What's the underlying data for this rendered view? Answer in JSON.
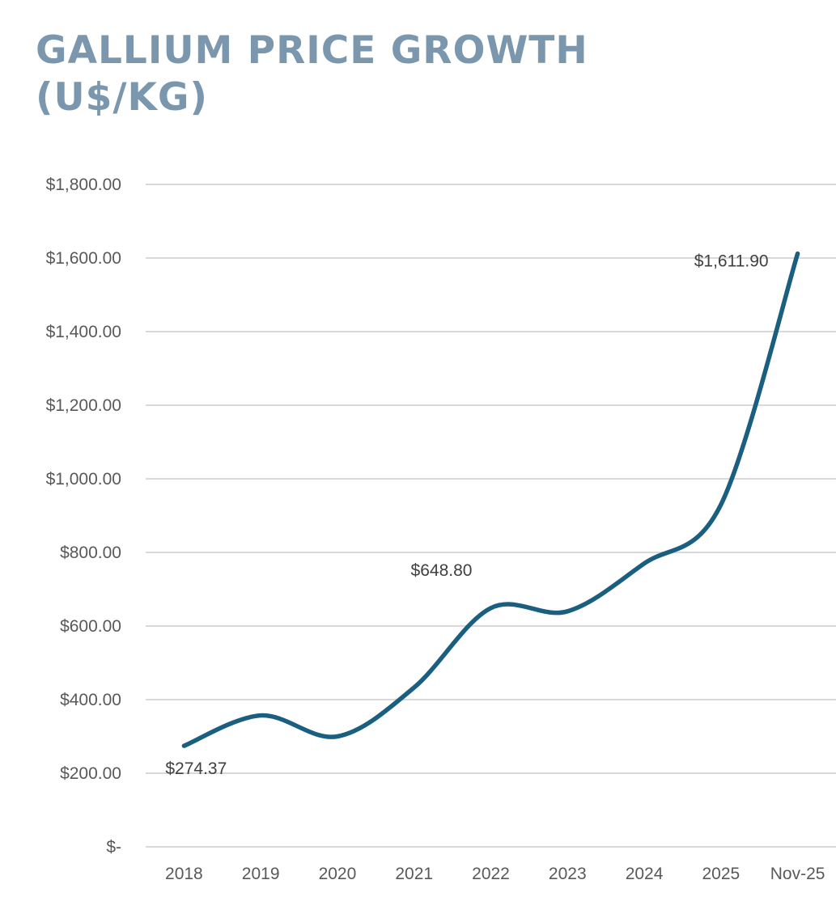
{
  "chart_data": {
    "type": "line",
    "title": "GALLIUM PRICE GROWTH (U$/KG)",
    "title_lines": [
      "GALLIUM PRICE GROWTH",
      "(U$/KG)"
    ],
    "xlabel": "",
    "ylabel": "",
    "categories": [
      "2018",
      "2019",
      "2020",
      "2021",
      "2022",
      "2023",
      "2024",
      "2025",
      "Nov-25"
    ],
    "series": [
      {
        "name": "Gallium price (US$/kg)",
        "color": "#1b5f80",
        "smooth": true,
        "values": [
          274.37,
          357,
          300,
          433,
          648.8,
          640,
          770,
          930,
          1611.9
        ]
      }
    ],
    "data_labels": [
      {
        "index": 0,
        "text": "$274.37",
        "position": "below-left"
      },
      {
        "index": 4,
        "text": "$648.80",
        "position": "above-left"
      },
      {
        "index": 8,
        "text": "$1,611.90",
        "position": "left"
      }
    ],
    "ylim": [
      0,
      1800
    ],
    "yticks": [
      0,
      200,
      400,
      600,
      800,
      1000,
      1200,
      1400,
      1600,
      1800
    ],
    "ytick_labels": [
      "$-",
      "$200.00",
      "$400.00",
      "$600.00",
      "$800.00",
      "$1,000.00",
      "$1,200.00",
      "$1,400.00",
      "$1,600.00",
      "$1,800.00"
    ],
    "grid": true,
    "legend": "none",
    "colors": {
      "title": "#7a97ae",
      "line": "#1b5f80",
      "grid": "#d9d9d9",
      "tick_text": "#595959",
      "label_text": "#404040"
    }
  }
}
